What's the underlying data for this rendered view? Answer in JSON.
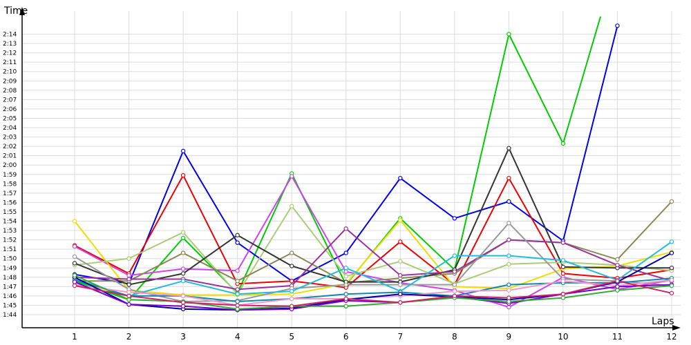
{
  "chart_data": {
    "type": "line",
    "xlabel": "Laps",
    "ylabel": "Time",
    "x": [
      1,
      2,
      3,
      4,
      5,
      6,
      7,
      8,
      9,
      10,
      11,
      12
    ],
    "ylim": [
      103.5,
      135.5
    ],
    "y_ticks": [
      {
        "v": 104,
        "label": "1:44"
      },
      {
        "v": 105,
        "label": "1:45"
      },
      {
        "v": 106,
        "label": "1:46"
      },
      {
        "v": 107,
        "label": "1:47"
      },
      {
        "v": 108,
        "label": "1:48"
      },
      {
        "v": 109,
        "label": "1:49"
      },
      {
        "v": 110,
        "label": "1:50"
      },
      {
        "v": 111,
        "label": "1:51"
      },
      {
        "v": 112,
        "label": "1:52"
      },
      {
        "v": 113,
        "label": "1:53"
      },
      {
        "v": 114,
        "label": "1:54"
      },
      {
        "v": 115,
        "label": "1:55"
      },
      {
        "v": 116,
        "label": "1:56"
      },
      {
        "v": 117,
        "label": "1:57"
      },
      {
        "v": 118,
        "label": "1:58"
      },
      {
        "v": 119,
        "label": "1:59"
      },
      {
        "v": 120,
        "label": "2:00"
      },
      {
        "v": 121,
        "label": "2:01"
      },
      {
        "v": 122,
        "label": "2:02"
      },
      {
        "v": 123,
        "label": "2:03"
      },
      {
        "v": 124,
        "label": "2:04"
      },
      {
        "v": 125,
        "label": "2:05"
      },
      {
        "v": 126,
        "label": "2:06"
      },
      {
        "v": 127,
        "label": "2:07"
      },
      {
        "v": 128,
        "label": "2:08"
      },
      {
        "v": 129,
        "label": "2:09"
      },
      {
        "v": 130,
        "label": "2:10"
      },
      {
        "v": 131,
        "label": "2:11"
      },
      {
        "v": 132,
        "label": "2:12"
      },
      {
        "v": 133,
        "label": "2:13"
      },
      {
        "v": 134,
        "label": "2:14"
      }
    ],
    "grid": true,
    "series": [
      {
        "color": "#00cc00",
        "values": [
          107.6,
          105.6,
          112.2,
          106.3,
          119.1,
          107.2,
          114.3,
          108.8,
          134.0,
          122.3,
          142.0,
          null
        ]
      },
      {
        "color": "#0000ee",
        "values": [
          108.3,
          107.3,
          121.5,
          111.7,
          107.6,
          110.6,
          118.6,
          114.3,
          116.1,
          111.9,
          134.9,
          null
        ]
      },
      {
        "color": "#ee0000",
        "values": [
          111.4,
          108.4,
          118.9,
          107.3,
          107.6,
          106.9,
          111.8,
          107.2,
          118.6,
          108.4,
          107.9,
          108.8
        ]
      },
      {
        "color": "#cc44ee",
        "values": [
          111.3,
          108.2,
          108.9,
          108.7,
          118.8,
          108.6,
          107.4,
          106.6,
          104.8,
          108.0,
          106.7,
          107.7
        ]
      },
      {
        "color": "#eedd00",
        "values": [
          114.0,
          106.6,
          106.1,
          106.1,
          106.2,
          107.3,
          114.1,
          107.0,
          106.8,
          108.9,
          109.2,
          110.7
        ]
      },
      {
        "color": "#aacc77",
        "values": [
          109.3,
          110.0,
          112.8,
          106.2,
          115.6,
          108.1,
          109.7,
          107.3,
          109.4,
          109.6,
          109.3,
          108.7
        ]
      },
      {
        "color": "#888855",
        "values": [
          107.6,
          107.6,
          110.6,
          107.6,
          110.6,
          107.4,
          107.9,
          108.4,
          112.0,
          111.7,
          109.9,
          116.1
        ]
      },
      {
        "color": "#333333",
        "values": [
          109.5,
          107.2,
          108.4,
          112.5,
          109.2,
          107.5,
          107.5,
          108.8,
          121.8,
          109.1,
          109.0,
          109.0
        ]
      },
      {
        "color": "#993399",
        "values": [
          108.0,
          107.8,
          107.8,
          106.7,
          107.1,
          113.2,
          108.2,
          108.6,
          112.0,
          111.7,
          109.3,
          107.6
        ]
      },
      {
        "color": "#999999",
        "values": [
          110.2,
          106.7,
          105.4,
          105.5,
          106.8,
          107.2,
          107.2,
          107.2,
          113.8,
          107.8,
          107.6,
          107.1
        ]
      },
      {
        "color": "#22bbdd",
        "values": [
          107.8,
          106.0,
          107.6,
          106.2,
          106.5,
          109.0,
          106.5,
          110.3,
          110.3,
          109.8,
          107.7,
          111.8
        ]
      },
      {
        "color": "#1188aa",
        "values": [
          107.7,
          106.0,
          106.0,
          105.4,
          105.7,
          106.2,
          106.4,
          106.0,
          107.2,
          107.4,
          107.4,
          107.9
        ]
      },
      {
        "color": "#ee99cc",
        "values": [
          107.2,
          106.4,
          106.0,
          105.0,
          105.7,
          105.7,
          106.0,
          106.5,
          106.6,
          107.6,
          107.1,
          107.7
        ]
      },
      {
        "color": "#000099",
        "values": [
          108.0,
          105.1,
          104.6,
          104.5,
          104.7,
          105.6,
          106.2,
          105.9,
          105.6,
          106.2,
          107.5,
          110.6
        ]
      },
      {
        "color": "#7700cc",
        "values": [
          107.5,
          105.1,
          104.9,
          104.5,
          104.6,
          105.5,
          105.3,
          105.9,
          105.2,
          106.2,
          107.0,
          107.2
        ]
      },
      {
        "color": "#33aa33",
        "values": [
          108.2,
          105.6,
          105.4,
          104.6,
          104.9,
          104.9,
          105.3,
          105.8,
          105.4,
          105.8,
          106.6,
          107.1
        ]
      },
      {
        "color": "#cc2266",
        "values": [
          107.1,
          106.0,
          105.3,
          105.0,
          104.9,
          105.7,
          105.3,
          106.0,
          105.8,
          106.2,
          107.6,
          106.3
        ]
      }
    ]
  }
}
